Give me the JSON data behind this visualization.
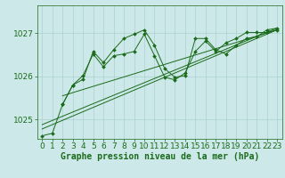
{
  "xlabel": "Graphe pression niveau de la mer (hPa)",
  "bg_color": "#cde8e8",
  "grid_color": "#aad0d0",
  "line_color": "#1a6b1a",
  "xlim": [
    -0.5,
    23.5
  ],
  "ylim": [
    1024.55,
    1027.65
  ],
  "yticks": [
    1025,
    1026,
    1027
  ],
  "xticks": [
    0,
    1,
    2,
    3,
    4,
    5,
    6,
    7,
    8,
    9,
    10,
    11,
    12,
    13,
    14,
    15,
    16,
    17,
    18,
    19,
    20,
    21,
    22,
    23
  ],
  "main_x": [
    0,
    1,
    2,
    3,
    4,
    5,
    6,
    7,
    8,
    9,
    10,
    11,
    12,
    13,
    14,
    15,
    16,
    17,
    18,
    19,
    20,
    21,
    22,
    23
  ],
  "main_y": [
    1024.62,
    1024.68,
    1025.35,
    1025.8,
    1025.93,
    1026.58,
    1026.32,
    1026.62,
    1026.88,
    1026.98,
    1027.08,
    1026.72,
    1026.18,
    1025.98,
    1026.02,
    1026.88,
    1026.88,
    1026.62,
    1026.52,
    1026.72,
    1026.88,
    1026.92,
    1027.08,
    1027.12
  ],
  "line2_x": [
    2,
    3,
    4,
    5,
    6,
    7,
    8,
    9,
    10,
    11,
    12,
    13,
    14,
    15,
    16,
    17,
    18,
    19,
    20,
    21,
    22,
    23
  ],
  "line2_y": [
    1025.35,
    1025.8,
    1026.02,
    1026.52,
    1026.22,
    1026.48,
    1026.52,
    1026.58,
    1026.98,
    1026.48,
    1025.98,
    1025.92,
    1026.08,
    1026.58,
    1026.82,
    1026.58,
    1026.78,
    1026.88,
    1027.02,
    1027.02,
    1027.02,
    1027.08
  ],
  "trend1_x": [
    0,
    23
  ],
  "trend1_y": [
    1024.78,
    1027.08
  ],
  "trend2_x": [
    0,
    23
  ],
  "trend2_y": [
    1024.88,
    1027.12
  ],
  "trend3_x": [
    2,
    23
  ],
  "trend3_y": [
    1025.55,
    1027.08
  ],
  "xlabel_fontsize": 7,
  "tick_fontsize": 6.5
}
